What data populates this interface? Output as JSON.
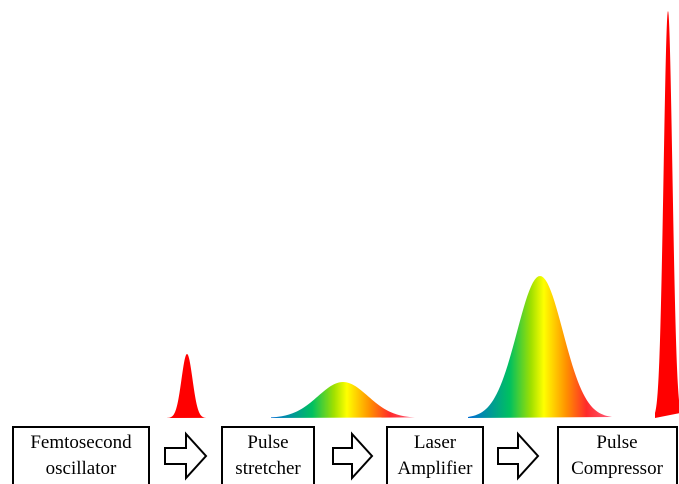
{
  "stages": [
    {
      "line1": "Femtosecond",
      "line2": "oscillator"
    },
    {
      "line1": "Pulse",
      "line2": "stretcher"
    },
    {
      "line1": "Laser",
      "line2": "Amplifier"
    },
    {
      "line1": "Pulse",
      "line2": "Compressor"
    }
  ],
  "colors": {
    "red_pulse": "#ff0000",
    "spectrum": [
      "#0070d0",
      "#00c060",
      "#a0e000",
      "#ffff00",
      "#ff9000",
      "#ff2a2a",
      "#ff6080"
    ]
  }
}
